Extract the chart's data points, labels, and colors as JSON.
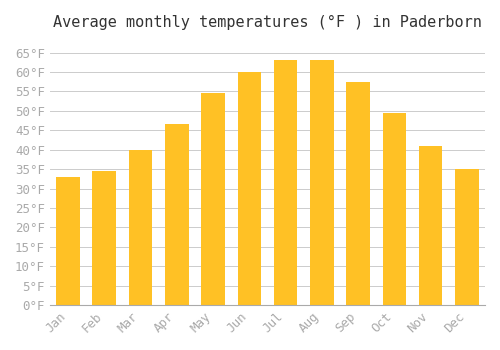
{
  "title": "Average monthly temperatures (°F ) in Paderborn",
  "months": [
    "Jan",
    "Feb",
    "Mar",
    "Apr",
    "May",
    "Jun",
    "Jul",
    "Aug",
    "Sep",
    "Oct",
    "Nov",
    "Dec"
  ],
  "values": [
    33,
    34.5,
    40,
    46.5,
    54.5,
    60,
    63,
    63,
    57.5,
    49.5,
    41,
    35
  ],
  "bar_color_face": "#FFC125",
  "bar_color_edge": "#FFD700",
  "background_color": "#FFFFFF",
  "grid_color": "#CCCCCC",
  "ylim": [
    0,
    68
  ],
  "yticks": [
    0,
    5,
    10,
    15,
    20,
    25,
    30,
    35,
    40,
    45,
    50,
    55,
    60,
    65
  ],
  "title_fontsize": 11,
  "tick_fontsize": 9,
  "tick_font_color": "#AAAAAA"
}
